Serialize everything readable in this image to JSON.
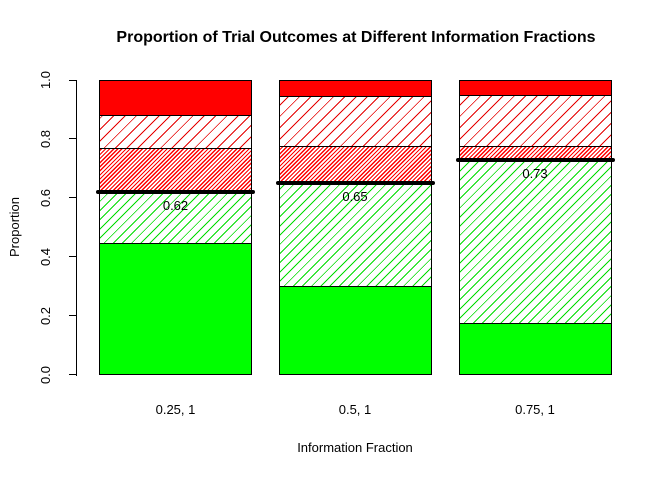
{
  "chart_data": {
    "type": "bar",
    "stacked": true,
    "title": "Proportion of Trial Outcomes at Different Information Fractions",
    "xlabel": "Information Fraction",
    "ylabel": "Proportion",
    "ylim": [
      0,
      1
    ],
    "yticks": [
      "0.0",
      "0.2",
      "0.4",
      "0.6",
      "0.8",
      "1.0"
    ],
    "grid": false,
    "legend": "none",
    "categories": [
      "0.25, 1",
      "0.5, 1",
      "0.75, 1"
    ],
    "series": [
      {
        "name": "green-solid",
        "style": "solid-green",
        "values": [
          0.445,
          0.3,
          0.175
        ]
      },
      {
        "name": "green-hatched",
        "style": "hatch-green",
        "values": [
          0.175,
          0.35,
          0.555
        ]
      },
      {
        "name": "red-hatched-dense",
        "style": "hatch-red-dense",
        "values": [
          0.15,
          0.125,
          0.045
        ]
      },
      {
        "name": "red-hatched-light",
        "style": "hatch-red-light",
        "values": [
          0.11,
          0.17,
          0.175
        ]
      },
      {
        "name": "red-solid",
        "style": "solid-red",
        "values": [
          0.12,
          0.055,
          0.05
        ]
      }
    ],
    "threshold_lines": [
      {
        "value": 0.62,
        "label": "0.62"
      },
      {
        "value": 0.65,
        "label": "0.65"
      },
      {
        "value": 0.73,
        "label": "0.73"
      }
    ],
    "colors": {
      "green": "#00FF00",
      "red": "#FF0000",
      "threshold": "#000000",
      "background": "#FFFFFF"
    }
  }
}
